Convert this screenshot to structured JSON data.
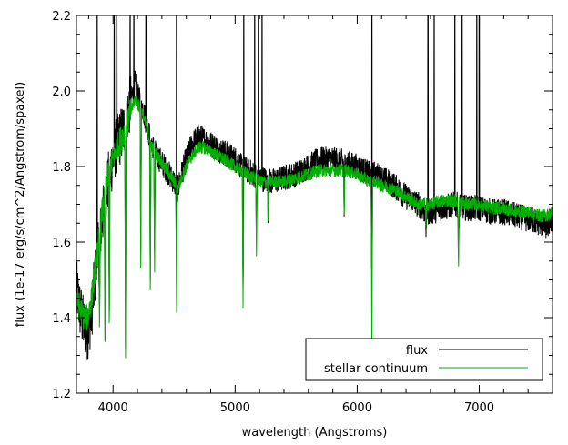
{
  "chart_data": {
    "type": "line",
    "title": "",
    "xlabel": "wavelength (Angstroms)",
    "ylabel": "flux (1e-17 erg/s/cm^2/Angstrom/spaxel)",
    "xlim": [
      3700,
      7600
    ],
    "ylim": [
      1.2,
      2.2
    ],
    "x_ticks": [
      4000,
      5000,
      6000,
      7000
    ],
    "y_ticks": [
      1.2,
      1.4,
      1.6,
      1.8,
      2.0,
      2.2
    ],
    "x_tick_labels": [
      "4000",
      "5000",
      "6000",
      "7000"
    ],
    "y_tick_labels": [
      "1.2",
      "1.4",
      "1.6",
      "1.8",
      "2.0",
      "2.2"
    ],
    "grid": false,
    "legend_position": "bottom-right",
    "series": [
      {
        "name": "flux",
        "color": "#000000",
        "x": [
          3700,
          3730,
          3760,
          3790,
          3820,
          3850,
          3880,
          3910,
          3940,
          3970,
          4000,
          4030,
          4060,
          4090,
          4120,
          4150,
          4180,
          4210,
          4240,
          4270,
          4300,
          4340,
          4380,
          4420,
          4460,
          4500,
          4530,
          4560,
          4600,
          4650,
          4700,
          4750,
          4800,
          4850,
          4900,
          4950,
          5000,
          5050,
          5100,
          5150,
          5200,
          5300,
          5400,
          5500,
          5600,
          5700,
          5800,
          5900,
          6000,
          6050,
          6100,
          6150,
          6200,
          6300,
          6400,
          6500,
          6560,
          6600,
          6700,
          6800,
          6900,
          7000,
          7100,
          7200,
          7300,
          7400,
          7500,
          7550,
          7600
        ],
        "y": [
          1.48,
          1.42,
          1.38,
          1.36,
          1.4,
          1.5,
          1.58,
          1.66,
          1.72,
          1.78,
          1.82,
          1.86,
          1.88,
          1.9,
          1.94,
          1.98,
          2.02,
          1.98,
          1.96,
          1.92,
          1.88,
          1.84,
          1.82,
          1.8,
          1.78,
          1.76,
          1.74,
          1.78,
          1.82,
          1.86,
          1.88,
          1.87,
          1.86,
          1.85,
          1.84,
          1.83,
          1.82,
          1.8,
          1.79,
          1.78,
          1.77,
          1.76,
          1.77,
          1.78,
          1.8,
          1.82,
          1.82,
          1.81,
          1.8,
          1.79,
          1.78,
          1.78,
          1.77,
          1.75,
          1.72,
          1.7,
          1.68,
          1.68,
          1.69,
          1.7,
          1.69,
          1.69,
          1.68,
          1.68,
          1.67,
          1.66,
          1.65,
          1.64,
          1.66
        ]
      },
      {
        "name": "stellar continuum",
        "color": "#00b000",
        "x": [
          3700,
          3730,
          3760,
          3790,
          3820,
          3850,
          3880,
          3910,
          3940,
          3970,
          4000,
          4030,
          4060,
          4090,
          4120,
          4150,
          4180,
          4210,
          4240,
          4270,
          4300,
          4340,
          4380,
          4420,
          4460,
          4500,
          4530,
          4560,
          4600,
          4650,
          4700,
          4750,
          4800,
          4850,
          4900,
          4950,
          5000,
          5050,
          5100,
          5150,
          5200,
          5300,
          5400,
          5500,
          5600,
          5700,
          5800,
          5900,
          6000,
          6050,
          6100,
          6150,
          6200,
          6300,
          6400,
          6500,
          6560,
          6600,
          6700,
          6800,
          6900,
          7000,
          7100,
          7200,
          7300,
          7400,
          7500,
          7550,
          7600
        ],
        "y": [
          1.46,
          1.42,
          1.4,
          1.4,
          1.44,
          1.52,
          1.6,
          1.68,
          1.74,
          1.79,
          1.82,
          1.85,
          1.87,
          1.89,
          1.92,
          1.95,
          1.98,
          1.96,
          1.94,
          1.91,
          1.87,
          1.84,
          1.82,
          1.8,
          1.78,
          1.76,
          1.74,
          1.77,
          1.8,
          1.83,
          1.85,
          1.85,
          1.84,
          1.83,
          1.82,
          1.81,
          1.8,
          1.79,
          1.78,
          1.77,
          1.76,
          1.76,
          1.76,
          1.77,
          1.78,
          1.79,
          1.79,
          1.79,
          1.78,
          1.77,
          1.76,
          1.76,
          1.75,
          1.74,
          1.72,
          1.7,
          1.7,
          1.7,
          1.71,
          1.71,
          1.7,
          1.7,
          1.69,
          1.69,
          1.68,
          1.68,
          1.67,
          1.67,
          1.68
        ]
      }
    ],
    "absorption_features": [
      {
        "x": 3890,
        "depth_to": 1.34
      },
      {
        "x": 3934,
        "depth_to": 1.3
      },
      {
        "x": 3969,
        "depth_to": 1.32
      },
      {
        "x": 4102,
        "depth_to": 1.29
      },
      {
        "x": 4227,
        "depth_to": 1.5
      },
      {
        "x": 4305,
        "depth_to": 1.42
      },
      {
        "x": 4340,
        "depth_to": 1.5
      },
      {
        "x": 4520,
        "depth_to": 1.39
      },
      {
        "x": 5065,
        "depth_to": 1.42
      },
      {
        "x": 5175,
        "depth_to": 1.56
      },
      {
        "x": 5270,
        "depth_to": 1.65
      },
      {
        "x": 5893,
        "depth_to": 1.66
      },
      {
        "x": 6120,
        "depth_to": 1.3
      },
      {
        "x": 6563,
        "depth_to": 1.62
      },
      {
        "x": 6830,
        "depth_to": 1.53
      }
    ],
    "emission_spikes": [
      {
        "x": 3870,
        "peak": 2.2
      },
      {
        "x": 4010,
        "peak": 2.2
      },
      {
        "x": 4030,
        "peak": 2.2
      },
      {
        "x": 4140,
        "peak": 2.2
      },
      {
        "x": 4170,
        "peak": 2.2
      },
      {
        "x": 4270,
        "peak": 2.2
      },
      {
        "x": 4520,
        "peak": 2.2
      },
      {
        "x": 5070,
        "peak": 2.2
      },
      {
        "x": 5160,
        "peak": 2.2
      },
      {
        "x": 5190,
        "peak": 2.2
      },
      {
        "x": 5220,
        "peak": 2.2
      },
      {
        "x": 6120,
        "peak": 2.2
      },
      {
        "x": 6580,
        "peak": 2.2
      },
      {
        "x": 6630,
        "peak": 2.2
      },
      {
        "x": 6800,
        "peak": 2.2
      },
      {
        "x": 6860,
        "peak": 2.2
      },
      {
        "x": 6980,
        "peak": 2.2
      },
      {
        "x": 7000,
        "peak": 2.2
      }
    ]
  }
}
